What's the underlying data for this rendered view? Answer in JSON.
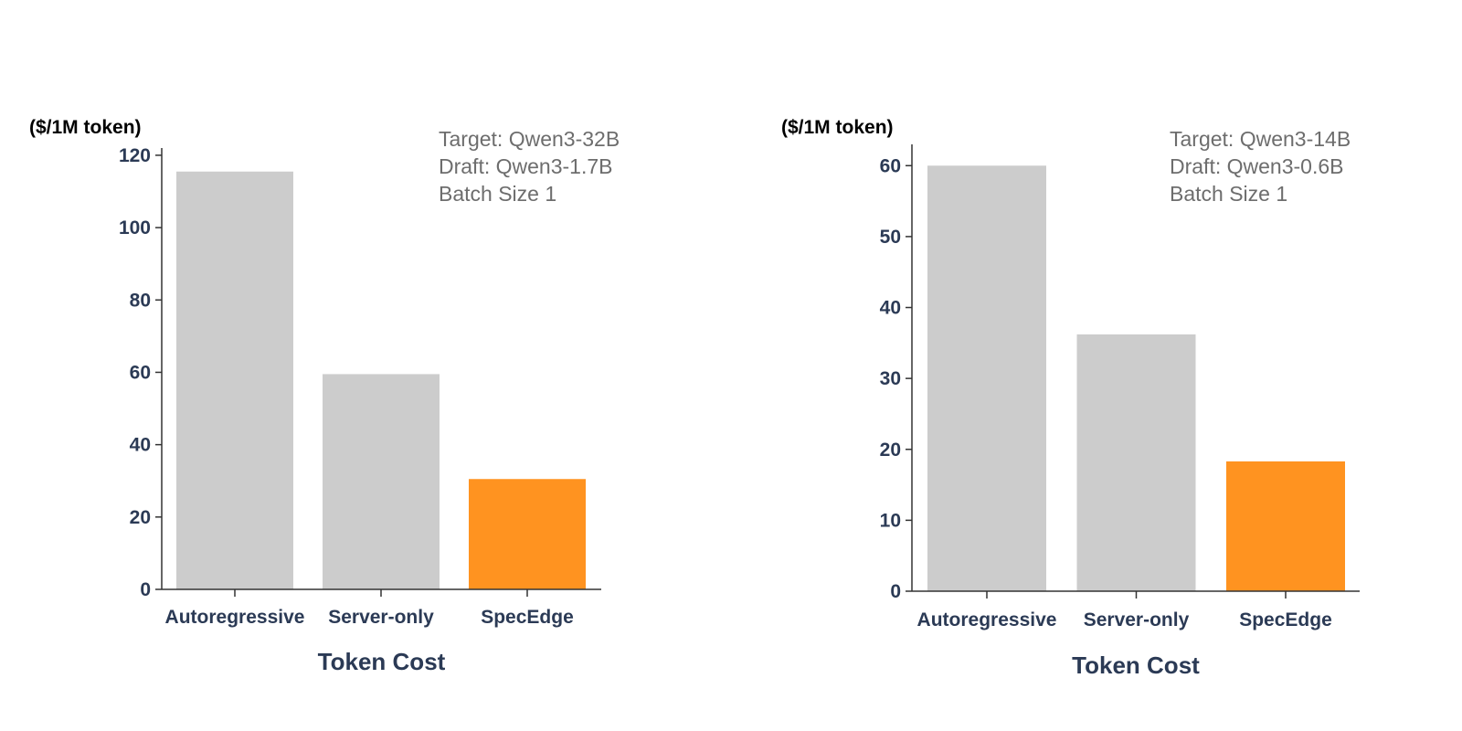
{
  "chart_data": [
    {
      "type": "bar",
      "unit_label": "($/1M token)",
      "annotation": [
        "Target: Qwen3-32B",
        "Draft: Qwen3-1.7B",
        "Batch Size 1"
      ],
      "categories": [
        "Autoregressive",
        "Server-only",
        "SpecEdge"
      ],
      "values": [
        115.5,
        59.5,
        30.5
      ],
      "bar_colors": [
        "#cccccc",
        "#cccccc",
        "#ff9320"
      ],
      "xlabel": "Token Cost",
      "ylabel": "",
      "ylim": [
        0,
        122
      ],
      "yticks": [
        0,
        20,
        40,
        60,
        80,
        100,
        120
      ],
      "grid": false,
      "legend": "none"
    },
    {
      "type": "bar",
      "unit_label": "($/1M token)",
      "annotation": [
        "Target: Qwen3-14B",
        "Draft: Qwen3-0.6B",
        "Batch Size 1"
      ],
      "categories": [
        "Autoregressive",
        "Server-only",
        "SpecEdge"
      ],
      "values": [
        60,
        36.2,
        18.3
      ],
      "bar_colors": [
        "#cccccc",
        "#cccccc",
        "#ff9320"
      ],
      "xlabel": "Token Cost",
      "ylabel": "",
      "ylim": [
        0,
        63
      ],
      "yticks": [
        0,
        10,
        20,
        30,
        40,
        50,
        60
      ],
      "grid": false,
      "legend": "none"
    }
  ]
}
